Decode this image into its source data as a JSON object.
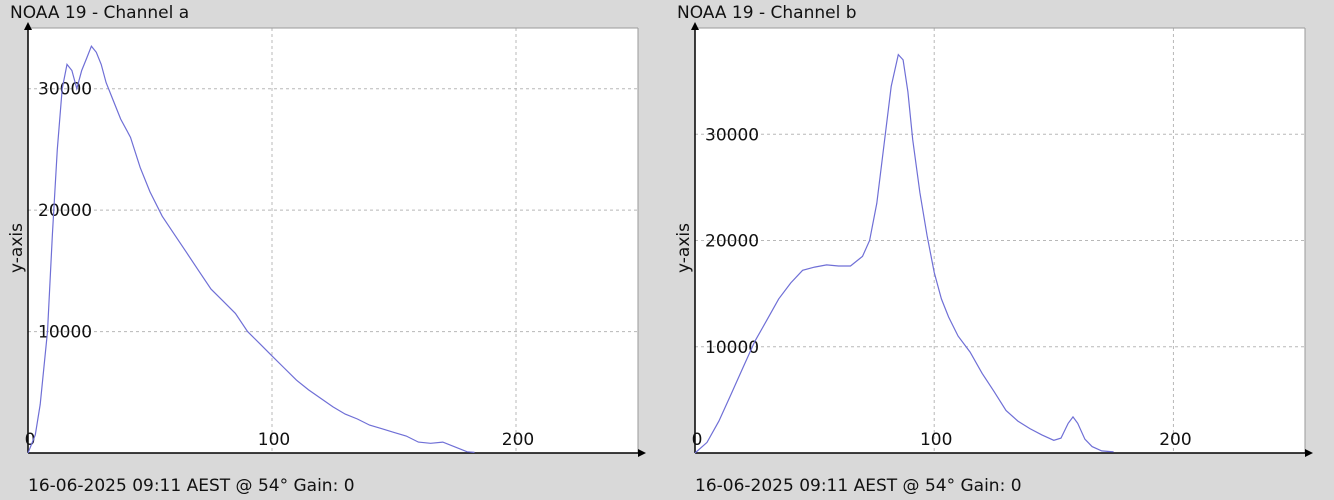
{
  "chart_data": [
    {
      "type": "line",
      "title": "NOAA 19 - Channel a",
      "footer": "16-06-2025 09:11 AEST @ 54° Gain: 0",
      "ylabel": "y-axis",
      "xlim": [
        0,
        250
      ],
      "ylim": [
        0,
        35000
      ],
      "x_ticks": [
        0,
        100,
        200
      ],
      "y_ticks": [
        10000,
        20000,
        30000
      ],
      "grid": true,
      "line_color": "#6f6fd6",
      "series": [
        {
          "x": [
            0,
            3,
            5,
            8,
            10,
            12,
            14,
            16,
            18,
            20,
            22,
            24,
            26,
            28,
            30,
            32,
            35,
            38,
            42,
            46,
            50,
            55,
            60,
            65,
            70,
            75,
            80,
            85,
            90,
            95,
            100,
            105,
            110,
            115,
            120,
            125,
            130,
            135,
            140,
            145,
            150,
            155,
            160,
            165,
            170,
            175,
            180,
            183
          ],
          "y": [
            0,
            1500,
            4000,
            10000,
            18000,
            25000,
            30000,
            32000,
            31500,
            30000,
            31500,
            32500,
            33500,
            33000,
            32000,
            30500,
            29000,
            27500,
            26000,
            23500,
            21500,
            19500,
            18000,
            16500,
            15000,
            13500,
            12500,
            11500,
            10000,
            9000,
            8000,
            7000,
            6000,
            5200,
            4500,
            3800,
            3200,
            2800,
            2300,
            2000,
            1700,
            1400,
            900,
            800,
            900,
            500,
            100,
            50
          ]
        }
      ]
    },
    {
      "type": "line",
      "title": "NOAA 19 - Channel b",
      "footer": "16-06-2025 09:11 AEST @ 54° Gain: 0",
      "ylabel": "y-axis",
      "xlim": [
        0,
        255
      ],
      "ylim": [
        0,
        40000
      ],
      "x_ticks": [
        0,
        100,
        200
      ],
      "y_ticks": [
        10000,
        20000,
        30000
      ],
      "grid": true,
      "line_color": "#6f6fd6",
      "series": [
        {
          "x": [
            0,
            5,
            10,
            15,
            20,
            25,
            30,
            35,
            40,
            45,
            50,
            55,
            60,
            65,
            70,
            73,
            76,
            79,
            82,
            85,
            87,
            89,
            91,
            94,
            97,
            100,
            103,
            106,
            110,
            115,
            120,
            125,
            130,
            135,
            140,
            145,
            150,
            153,
            156,
            158,
            160,
            163,
            166,
            170,
            175
          ],
          "y": [
            0,
            1000,
            3000,
            5500,
            8000,
            10500,
            12500,
            14500,
            16000,
            17200,
            17500,
            17700,
            17600,
            17600,
            18500,
            20000,
            23500,
            29000,
            34500,
            37500,
            37000,
            34000,
            29500,
            24500,
            20500,
            17000,
            14500,
            12800,
            11000,
            9500,
            7500,
            5800,
            4000,
            3000,
            2300,
            1700,
            1200,
            1400,
            2800,
            3400,
            2800,
            1300,
            600,
            200,
            100
          ]
        }
      ]
    }
  ]
}
